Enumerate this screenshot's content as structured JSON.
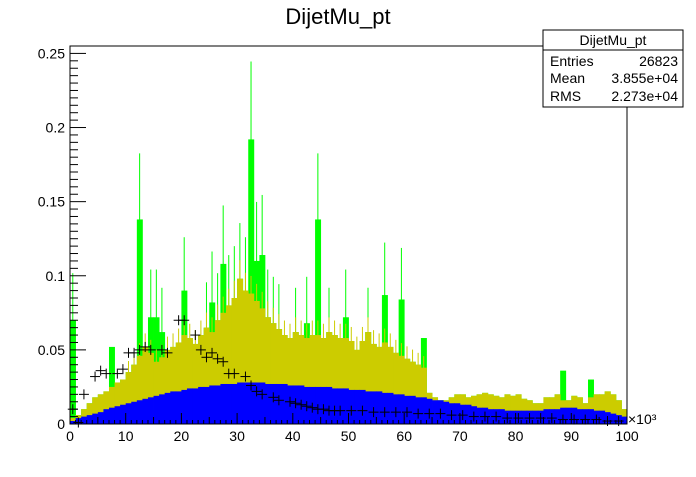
{
  "chart_data": {
    "type": "bar",
    "title": "DijetMu_pt",
    "xlabel": "",
    "ylabel": "",
    "xlim": [
      0,
      100
    ],
    "ylim": [
      0,
      0.255
    ],
    "x_ticks": [
      0,
      10,
      20,
      30,
      40,
      50,
      60,
      70,
      80,
      90,
      100
    ],
    "y_ticks": [
      0,
      0.05,
      0.1,
      0.15,
      0.2,
      0.25
    ],
    "x_tick_labels": [
      "0",
      "10",
      "20",
      "30",
      "40",
      "50",
      "60",
      "70",
      "80",
      "90",
      "100"
    ],
    "y_tick_labels": [
      "0",
      "0.05",
      "0.1",
      "0.15",
      "0.2",
      "0.25"
    ],
    "x_exponent_label": "×10³",
    "bin_width": 1,
    "stat_box": {
      "title": "DijetMu_pt",
      "rows": [
        {
          "label": "Entries",
          "value": "26823"
        },
        {
          "label": "Mean",
          "value": "3.855e+04"
        },
        {
          "label": "RMS",
          "value": "2.273e+04"
        }
      ]
    },
    "colors": {
      "blue": "#0000ff",
      "yellow": "#cccc00",
      "green": "#00ff00",
      "markers": "#000000",
      "axis": "#000000"
    },
    "series": [
      {
        "color_role": "blue",
        "values": [
          0.002,
          0.004,
          0.005,
          0.006,
          0.007,
          0.008,
          0.01,
          0.011,
          0.012,
          0.013,
          0.014,
          0.015,
          0.016,
          0.017,
          0.018,
          0.019,
          0.02,
          0.021,
          0.022,
          0.022,
          0.023,
          0.024,
          0.024,
          0.025,
          0.025,
          0.026,
          0.026,
          0.027,
          0.027,
          0.027,
          0.028,
          0.028,
          0.028,
          0.028,
          0.028,
          0.027,
          0.027,
          0.027,
          0.027,
          0.026,
          0.026,
          0.026,
          0.025,
          0.025,
          0.025,
          0.025,
          0.025,
          0.024,
          0.024,
          0.024,
          0.023,
          0.023,
          0.023,
          0.022,
          0.022,
          0.022,
          0.021,
          0.021,
          0.02,
          0.02,
          0.019,
          0.019,
          0.018,
          0.018,
          0.017,
          0.016,
          0.016,
          0.015,
          0.014,
          0.014,
          0.013,
          0.013,
          0.012,
          0.011,
          0.011,
          0.01,
          0.01,
          0.01,
          0.009,
          0.009,
          0.009,
          0.009,
          0.009,
          0.009,
          0.009,
          0.01,
          0.01,
          0.01,
          0.011,
          0.011,
          0.011,
          0.01,
          0.01,
          0.01,
          0.009,
          0.009,
          0.008,
          0.007,
          0.006,
          0.005
        ]
      },
      {
        "color_role": "yellow",
        "values": [
          0.004,
          0.006,
          0.01,
          0.014,
          0.018,
          0.02,
          0.022,
          0.025,
          0.028,
          0.03,
          0.035,
          0.04,
          0.046,
          0.052,
          0.048,
          0.042,
          0.045,
          0.05,
          0.052,
          0.055,
          0.06,
          0.058,
          0.054,
          0.06,
          0.065,
          0.062,
          0.07,
          0.075,
          0.08,
          0.085,
          0.098,
          0.09,
          0.088,
          0.083,
          0.078,
          0.072,
          0.068,
          0.064,
          0.06,
          0.058,
          0.062,
          0.06,
          0.058,
          0.06,
          0.06,
          0.058,
          0.062,
          0.06,
          0.058,
          0.058,
          0.056,
          0.05,
          0.056,
          0.062,
          0.054,
          0.052,
          0.055,
          0.052,
          0.048,
          0.046,
          0.044,
          0.042,
          0.04,
          0.038,
          0.021,
          0.018,
          0.016,
          0.016,
          0.018,
          0.02,
          0.02,
          0.018,
          0.019,
          0.02,
          0.021,
          0.02,
          0.019,
          0.018,
          0.02,
          0.019,
          0.02,
          0.017,
          0.016,
          0.014,
          0.014,
          0.018,
          0.018,
          0.02,
          0.016,
          0.016,
          0.019,
          0.018,
          0.014,
          0.018,
          0.02,
          0.02,
          0.022,
          0.02,
          0.016,
          0.01
        ]
      },
      {
        "color_role": "green",
        "values": [
          0.07,
          0.006,
          0.01,
          0.014,
          0.018,
          0.02,
          0.022,
          0.052,
          0.028,
          0.03,
          0.035,
          0.04,
          0.138,
          0.052,
          0.072,
          0.072,
          0.062,
          0.05,
          0.052,
          0.055,
          0.09,
          0.058,
          0.054,
          0.06,
          0.065,
          0.082,
          0.07,
          0.108,
          0.08,
          0.085,
          0.098,
          0.09,
          0.192,
          0.11,
          0.114,
          0.072,
          0.068,
          0.064,
          0.06,
          0.058,
          0.062,
          0.06,
          0.068,
          0.06,
          0.138,
          0.058,
          0.062,
          0.06,
          0.058,
          0.072,
          0.056,
          0.05,
          0.056,
          0.062,
          0.054,
          0.052,
          0.087,
          0.052,
          0.048,
          0.084,
          0.044,
          0.042,
          0.04,
          0.058,
          0.021,
          0.018,
          0.016,
          0.016,
          0.018,
          0.02,
          0.02,
          0.018,
          0.019,
          0.02,
          0.021,
          0.02,
          0.019,
          0.018,
          0.02,
          0.019,
          0.02,
          0.017,
          0.016,
          0.014,
          0.014,
          0.018,
          0.018,
          0.02,
          0.036,
          0.016,
          0.019,
          0.018,
          0.014,
          0.03,
          0.02,
          0.02,
          0.022,
          0.02,
          0.016,
          0.01
        ]
      },
      {
        "color_role": "markers",
        "x": [
          0.5,
          1.5,
          2.5,
          4.5,
          5.5,
          6.5,
          8.5,
          9.5,
          10.5,
          11.5,
          12.5,
          13.5,
          14.5,
          16.5,
          17.5,
          19.5,
          20.5,
          22.5,
          23.5,
          24.5,
          25.5,
          26.5,
          27.5,
          28.5,
          29.5,
          31.5,
          32.5,
          33.5,
          34.5,
          36.5,
          37.5,
          39.5,
          40.5,
          41.5,
          42.5,
          43.5,
          44.5,
          45.5,
          46.5,
          47.5,
          48.5,
          50.5,
          52.5,
          54.5,
          56.5,
          58.5,
          60.5,
          62.5,
          64.5,
          66.5,
          68.5,
          70.5,
          72.5,
          74.5,
          76.5,
          78.5,
          80.5,
          82.5,
          84.5,
          86.5,
          88.5,
          90.5,
          92.5,
          94.5,
          96.5,
          98.5
        ],
        "values": [
          0.01,
          0.001,
          0.02,
          0.032,
          0.036,
          0.034,
          0.034,
          0.037,
          0.048,
          0.048,
          0.05,
          0.052,
          0.05,
          0.05,
          0.048,
          0.07,
          0.07,
          0.06,
          0.05,
          0.045,
          0.048,
          0.044,
          0.042,
          0.034,
          0.034,
          0.032,
          0.026,
          0.022,
          0.02,
          0.018,
          0.016,
          0.015,
          0.014,
          0.013,
          0.012,
          0.011,
          0.01,
          0.01,
          0.009,
          0.009,
          0.009,
          0.009,
          0.009,
          0.008,
          0.008,
          0.008,
          0.008,
          0.007,
          0.007,
          0.007,
          0.006,
          0.006,
          0.005,
          0.005,
          0.005,
          0.004,
          0.004,
          0.004,
          0.004,
          0.004,
          0.003,
          0.003,
          0.003,
          0.003,
          0.002,
          0.002
        ]
      }
    ]
  }
}
